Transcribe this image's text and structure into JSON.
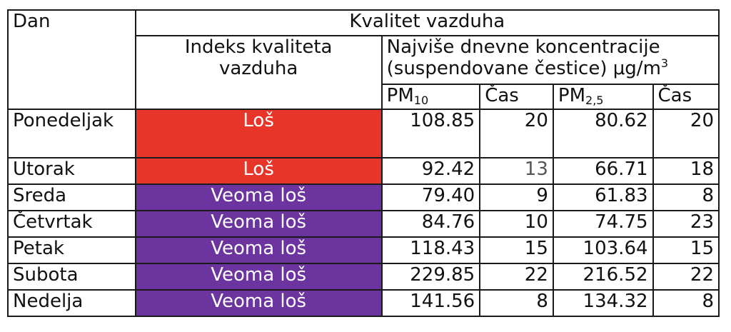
{
  "header": {
    "day": "Dan",
    "air_quality": "Kvalitet vazduha",
    "index_line1": "Indeks kvaliteta",
    "index_line2": "vazduha",
    "max_conc_line1": "Najviše dnevne koncentracije",
    "max_conc_line2": "(suspendovane čestice) μg/m",
    "max_conc_sup": "3",
    "pm10_base": "PM",
    "pm10_sub": "10",
    "hour": "Čas",
    "pm25_base": "PM",
    "pm25_sub": "2,5",
    "hour2": "Čas"
  },
  "colors": {
    "bad": "#e8352a",
    "very_bad": "#6c349e"
  },
  "rows": [
    {
      "day": "Ponedeljak",
      "index": "Loš",
      "index_level": "bad",
      "pm10": "108.85",
      "pm10_hour": "20",
      "pm25": "80.62",
      "pm25_hour": "20"
    },
    {
      "day": "Utorak",
      "index": "Loš",
      "index_level": "bad",
      "pm10": "92.42",
      "pm10_hour": "13",
      "pm25": "66.71",
      "pm25_hour": "18"
    },
    {
      "day": "Sreda",
      "index": "Veoma loš",
      "index_level": "very_bad",
      "pm10": "79.40",
      "pm10_hour": "9",
      "pm25": "61.83",
      "pm25_hour": "8"
    },
    {
      "day": "Četvrtak",
      "index": "Veoma loš",
      "index_level": "very_bad",
      "pm10": "84.76",
      "pm10_hour": "10",
      "pm25": "74.75",
      "pm25_hour": "23"
    },
    {
      "day": "Petak",
      "index": "Veoma loš",
      "index_level": "very_bad",
      "pm10": "118.43",
      "pm10_hour": "15",
      "pm25": "103.64",
      "pm25_hour": "15"
    },
    {
      "day": "Subota",
      "index": "Veoma loš",
      "index_level": "very_bad",
      "pm10": "229.85",
      "pm10_hour": "22",
      "pm25": "216.52",
      "pm25_hour": "22"
    },
    {
      "day": "Nedelja",
      "index": "Veoma loš",
      "index_level": "very_bad",
      "pm10": "141.56",
      "pm10_hour": "8",
      "pm25": "134.32",
      "pm25_hour": "8"
    }
  ]
}
